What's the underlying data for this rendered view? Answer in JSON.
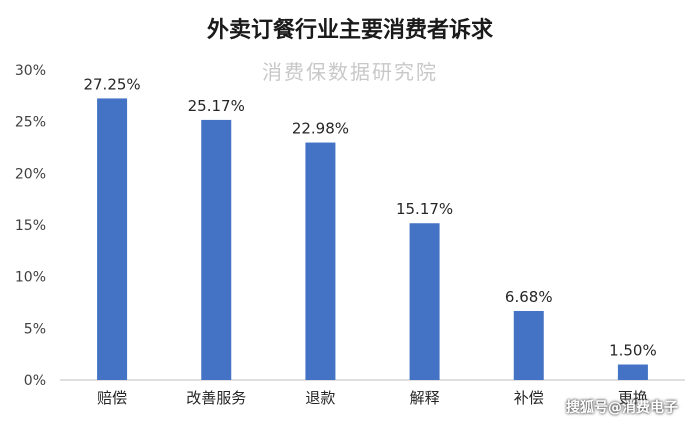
{
  "chart_data": {
    "type": "bar",
    "title": "外卖订餐行业主要消费者诉求",
    "categories": [
      "赔偿",
      "改善服务",
      "退款",
      "解释",
      "补偿",
      "更换"
    ],
    "values": [
      27.25,
      25.17,
      22.98,
      15.17,
      6.68,
      1.5
    ],
    "data_labels": [
      "27.25%",
      "25.17%",
      "22.98%",
      "15.17%",
      "6.68%",
      "1.50%"
    ],
    "y_ticks": [
      0,
      5,
      10,
      15,
      20,
      25,
      30
    ],
    "y_tick_labels": [
      "0%",
      "5%",
      "10%",
      "15%",
      "20%",
      "25%",
      "30%"
    ],
    "ylim": [
      0,
      30
    ],
    "xlabel": "",
    "ylabel": "",
    "grid": false,
    "bar_color": "#4472C4"
  },
  "watermarks": {
    "top": "消费保数据研究院",
    "bottom": "搜狐号@消费电子"
  }
}
